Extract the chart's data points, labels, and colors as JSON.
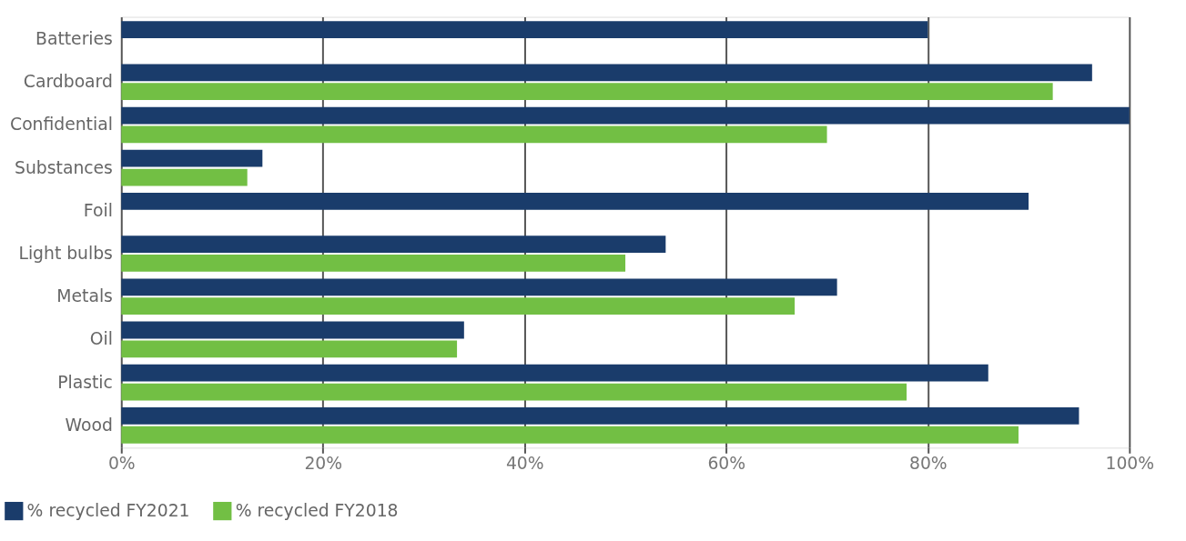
{
  "chart_data": {
    "type": "bar",
    "orientation": "horizontal",
    "categories": [
      "Batteries",
      "Cardboard",
      "Confidential",
      "Substances",
      "Foil",
      "Light bulbs",
      "Metals",
      "Oil",
      "Plastic",
      "Wood"
    ],
    "series": [
      {
        "name": "% recycled FY2021",
        "color": "#1a3c6b",
        "values": [
          80,
          96.3,
          100,
          14,
          90,
          54,
          71,
          34,
          86,
          95
        ]
      },
      {
        "name": "% recycled FY2018",
        "color": "#72bf44",
        "values": [
          null,
          92.4,
          70,
          12.5,
          null,
          50,
          66.8,
          33.3,
          77.9,
          89
        ]
      }
    ],
    "xlim": [
      0,
      100
    ],
    "xticks": [
      {
        "value": 0,
        "label": "0%"
      },
      {
        "value": 20,
        "label": "20%"
      },
      {
        "value": 40,
        "label": "40%"
      },
      {
        "value": 60,
        "label": "60%"
      },
      {
        "value": 80,
        "label": "80%"
      },
      {
        "value": 100,
        "label": "100%"
      }
    ],
    "grid": "x",
    "legend": "bottom left"
  }
}
